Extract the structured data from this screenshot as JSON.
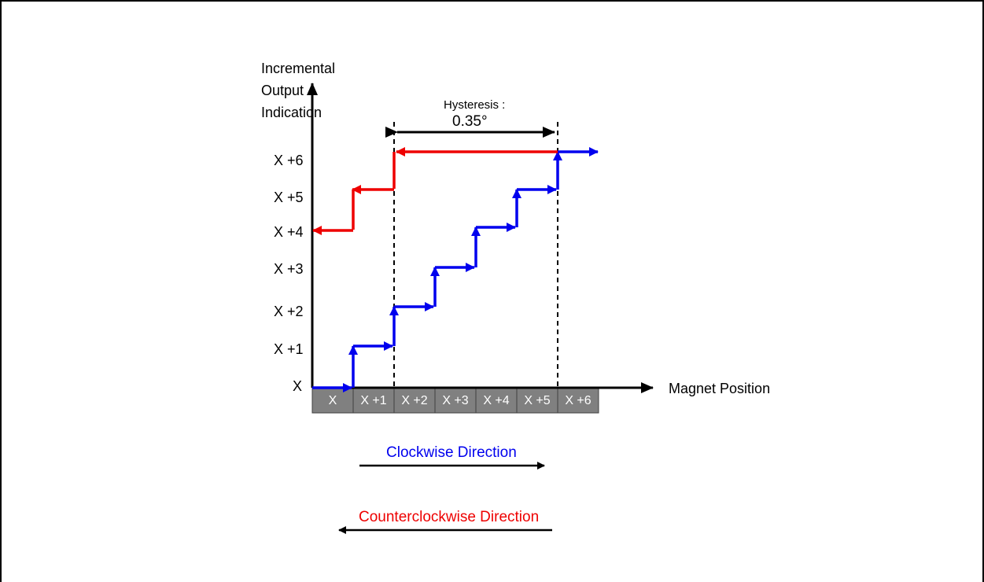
{
  "y_axis": {
    "title_lines": [
      "Incremental",
      "Output",
      "Indication"
    ],
    "ticks": [
      "X",
      "X +1",
      "X +2",
      "X +3",
      "X +4",
      "X +5",
      "X +6"
    ]
  },
  "x_axis": {
    "title": "Magnet Position",
    "cells": [
      "X",
      "X +1",
      "X +2",
      "X +3",
      "X +4",
      "X +5",
      "X +6"
    ]
  },
  "hysteresis": {
    "label": "Hysteresis :",
    "value": "0.35°"
  },
  "directions": {
    "clockwise": "Clockwise Direction",
    "counterclockwise": "Counterclockwise Direction"
  },
  "colors": {
    "clockwise": "#0000ee",
    "counterclockwise": "#ee0000",
    "cell_fill": "#808080",
    "axis": "#000000"
  }
}
